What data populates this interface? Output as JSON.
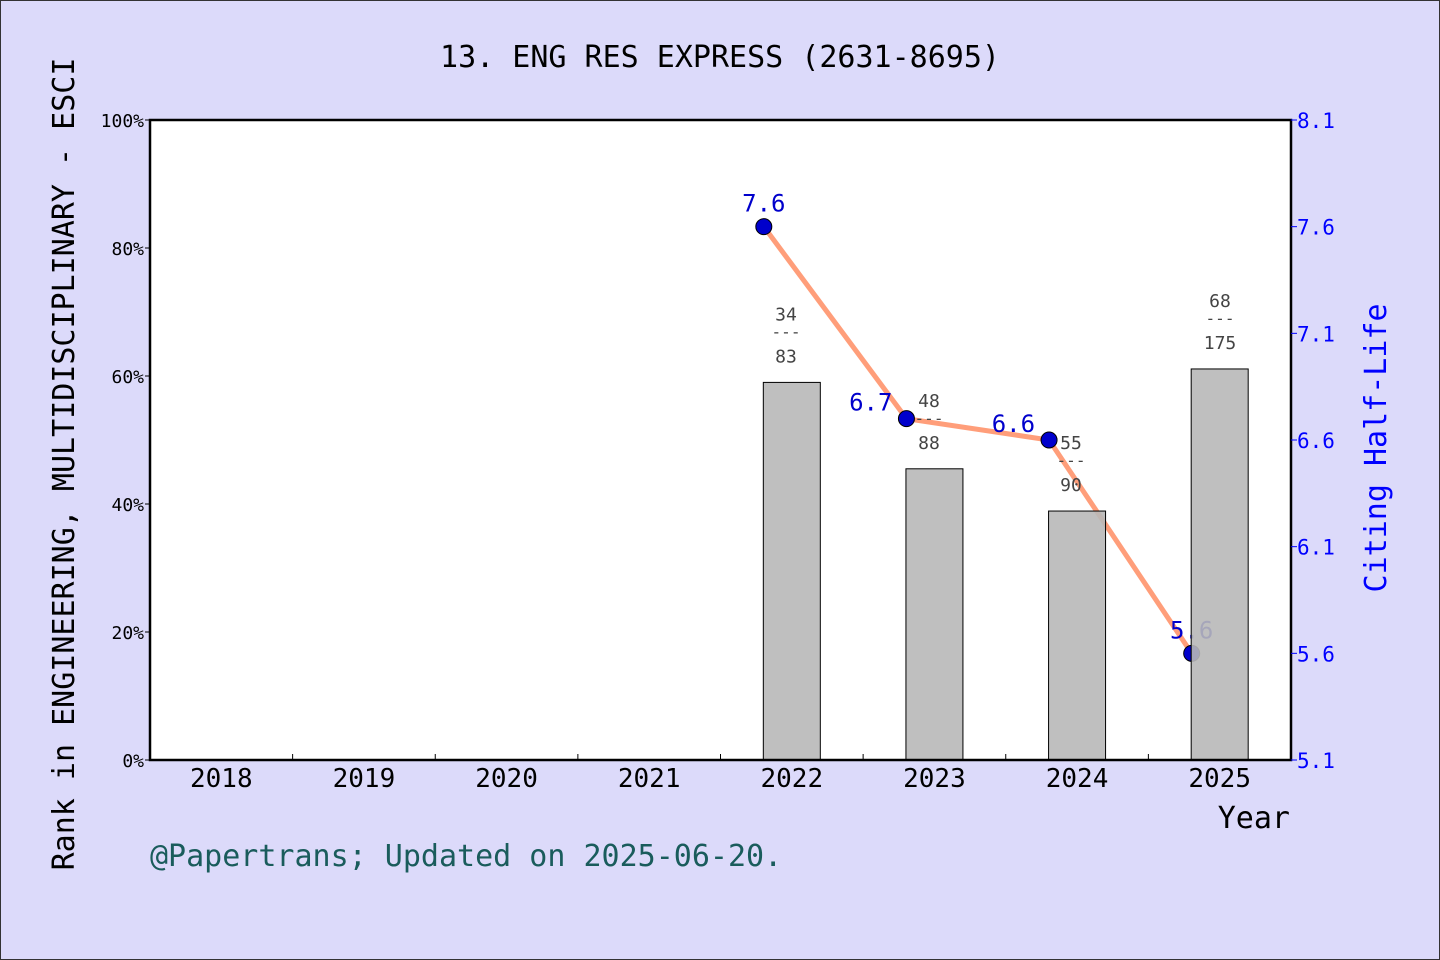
{
  "chart_data": {
    "type": "bar+line",
    "title": "13. ENG RES EXPRESS (2631-8695)",
    "xlabel": "Year",
    "ylabel": "Rank in ENGINEERING, MULTIDISCIPLINARY - ESCI",
    "y2label": "Citing Half-Life",
    "categories": [
      "2018",
      "2019",
      "2020",
      "2021",
      "2022",
      "2023",
      "2024",
      "2025"
    ],
    "ylim": [
      0,
      100
    ],
    "yticks": [
      "0%",
      "20%",
      "40%",
      "60%",
      "80%",
      "100%"
    ],
    "y2lim": [
      5.1,
      8.1
    ],
    "y2ticks": [
      "5.1",
      "5.6",
      "6.1",
      "6.6",
      "7.1",
      "7.6",
      "8.1"
    ],
    "bars": [
      {
        "year": "2022",
        "value": 59.0,
        "rank": "34",
        "total": "83"
      },
      {
        "year": "2023",
        "value": 45.5,
        "rank": "48",
        "total": "88"
      },
      {
        "year": "2024",
        "value": 38.9,
        "rank": "55",
        "total": "90"
      },
      {
        "year": "2025",
        "value": 61.1,
        "rank": "68",
        "total": "175"
      }
    ],
    "line": [
      {
        "year": "2022",
        "value": 7.6,
        "label": "7.6"
      },
      {
        "year": "2023",
        "value": 6.7,
        "label": "6.7"
      },
      {
        "year": "2024",
        "value": 6.6,
        "label": "6.6"
      },
      {
        "year": "2025",
        "value": 5.6,
        "label": "5.6"
      }
    ],
    "colors": {
      "bar": "#b8b8b8",
      "line": "#ff9e7a",
      "marker": "#0000cc",
      "right_axis": "#0000ff",
      "background": "#dcdafa"
    },
    "grid": false
  },
  "footer": "@Papertrans; Updated on 2025-06-20."
}
